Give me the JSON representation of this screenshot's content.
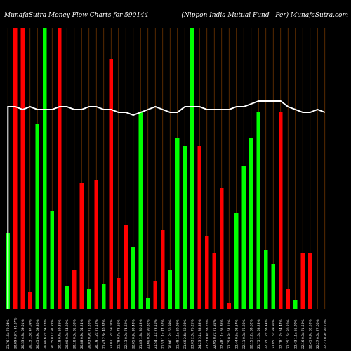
{
  "chart_data": {
    "type": "bar",
    "header_left": "MunafaSutra  Money Flow  Charts for 590144",
    "header_right": "(Nippon  India  Mutual Fund -  Per) MunafaSutra.com",
    "ylim": [
      0,
      1
    ],
    "colors": {
      "up": "#00ff00",
      "down": "#ff0000",
      "grid": "#7a3a00",
      "line": "#ffffff",
      "background": "#000000"
    },
    "categories": [
      "21.76 1.6x 79.04%",
      "20.89 0.97x 91.87%",
      "20.33 4.8x 69.51%",
      "20.15 1.3x 47.09%",
      "20.45 0.9x 69.36%",
      "20.80 6.2x 84.23%",
      "20.25 0.1x 97.27%",
      "20.18 0.4x 69.36%",
      "20.00 0.8x 64.20%",
      "20.18 0.8x 31.68%",
      "20.88 0.9x 64.24%",
      "20.03 0.9x 71.56%",
      "20.19 1.2x 71.12%",
      "21.43 2.8x 40.37%",
      "22.02 1.2x 59.07%",
      "21.78 0.7x 78.61%",
      "22.13 0.9x 74.62%",
      "22.05 0.9x 90.43%",
      "21.83 1.3x 80.13%",
      "21.60 0.6x 90.32%",
      "21.54 1.1x 73.16%",
      "21.53 1.1x 77.52%",
      "20.96 1.2x 60.99%",
      "21.48 1.1x 80.96%",
      "21.60 2.4x 60.23%",
      "23.03 2.0x 76.25%",
      "24.23 5.1x 88.83%",
      "23.23 0.4x 53.26%",
      "22.95 0.7x 71.85%",
      "22.48 1.1x 65.35%",
      "22.75 0.8x 54.11%",
      "22.44 0.5x 98.57%",
      "22.11 0.8x 76.26%",
      "22.15 2.2x 83.62%",
      "21.75 1.5x 58.23%",
      "22.35 1.2x 83.44%",
      "22.85 1.5x 89.95%",
      "22.78 1.2x 54.47%",
      "22.25 1.6x 80.26%",
      "22.43 1.1x 61.90%",
      "22.16 0.8x 71.59%",
      "22.41 0.9x 82.50%",
      "22.27 0.6x 77.06%",
      "22.21 0.9x 90.10%"
    ],
    "values": [
      0.27,
      1.0,
      1.0,
      0.06,
      0.66,
      1.0,
      0.35,
      1.0,
      0.08,
      0.14,
      0.45,
      0.07,
      0.46,
      0.09,
      0.89,
      0.11,
      0.3,
      0.22,
      0.7,
      0.04,
      0.1,
      0.28,
      0.14,
      0.61,
      0.58,
      1.0,
      0.58,
      0.26,
      0.2,
      0.43,
      0.02,
      0.34,
      0.51,
      0.61,
      0.7,
      0.21,
      0.16,
      0.7,
      0.07,
      0.03,
      0.2,
      0.2,
      0.0,
      0.0
    ],
    "directions": [
      "up",
      "down",
      "down",
      "down",
      "up",
      "up",
      "up",
      "down",
      "up",
      "down",
      "down",
      "up",
      "down",
      "up",
      "down",
      "down",
      "down",
      "up",
      "up",
      "up",
      "down",
      "down",
      "up",
      "up",
      "up",
      "up",
      "down",
      "down",
      "down",
      "down",
      "down",
      "up",
      "up",
      "up",
      "up",
      "up",
      "up",
      "down",
      "down",
      "up",
      "down",
      "down",
      "up",
      "down"
    ],
    "line": [
      0.72,
      0.72,
      0.71,
      0.72,
      0.71,
      0.71,
      0.71,
      0.72,
      0.72,
      0.71,
      0.71,
      0.72,
      0.72,
      0.71,
      0.71,
      0.7,
      0.7,
      0.69,
      0.7,
      0.71,
      0.72,
      0.71,
      0.7,
      0.7,
      0.72,
      0.72,
      0.72,
      0.71,
      0.71,
      0.71,
      0.71,
      0.72,
      0.72,
      0.73,
      0.74,
      0.74,
      0.74,
      0.74,
      0.72,
      0.71,
      0.7,
      0.7,
      0.71,
      0.7
    ]
  }
}
